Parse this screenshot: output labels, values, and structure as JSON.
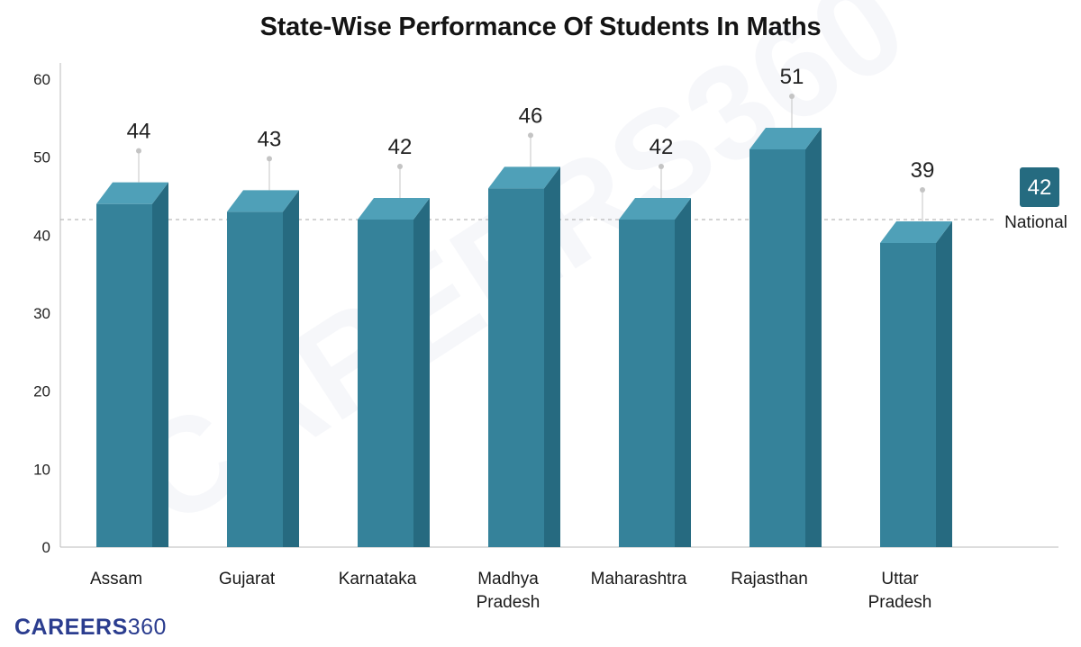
{
  "chart_data": {
    "type": "bar",
    "title": "State-Wise Performance Of Students In Maths",
    "categories": [
      [
        "Assam"
      ],
      [
        "Gujarat"
      ],
      [
        "Karnataka"
      ],
      [
        "Madhya",
        "Pradesh"
      ],
      [
        "Maharashtra"
      ],
      [
        "Rajasthan"
      ],
      [
        "Uttar",
        "Pradesh"
      ]
    ],
    "values": [
      44,
      43,
      42,
      46,
      42,
      51,
      39
    ],
    "ylim": [
      0,
      60
    ],
    "yticks": [
      0,
      10,
      20,
      30,
      40,
      50,
      60
    ],
    "grid": false,
    "reference_line": {
      "label": "National",
      "value": 42
    },
    "colors": {
      "bar_front": "#35829a",
      "bar_side": "#266a80",
      "bar_top": "#4fa0b8",
      "badge": "#256b80",
      "reference_line": "#aaaaaa",
      "axis": "#bbbbbb"
    }
  },
  "brand": {
    "bold": "CAREERS",
    "light": "360"
  },
  "watermark": "CAREERS360"
}
